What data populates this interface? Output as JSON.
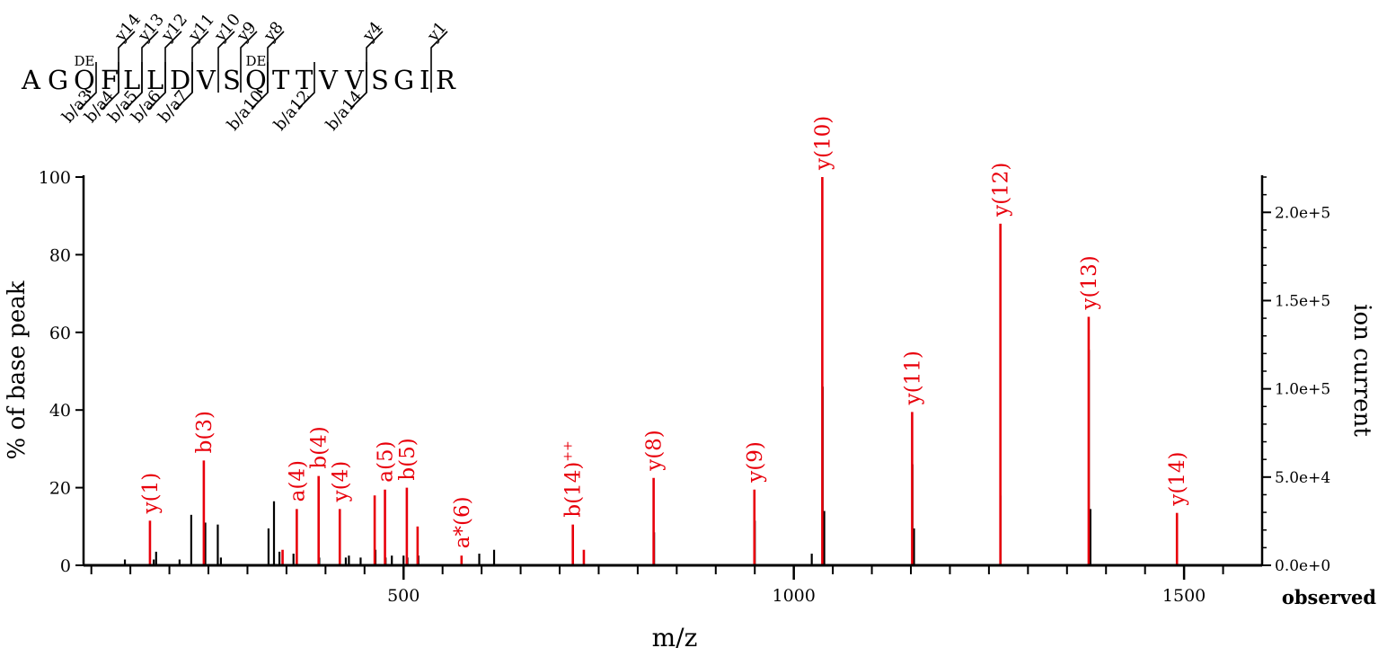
{
  "peptide": {
    "residues": [
      "A",
      "G",
      "Q",
      "F",
      "L",
      "L",
      "D",
      "V",
      "S",
      "Q",
      "T",
      "T",
      "V",
      "V",
      "S",
      "G",
      "I",
      "R"
    ],
    "modification_label": "DE",
    "modified_positions": [
      3,
      10
    ],
    "b_cleavages": [
      {
        "after": 3,
        "label": "b/a3"
      },
      {
        "after": 4,
        "label": "b/a4"
      },
      {
        "after": 5,
        "label": "b/a5"
      },
      {
        "after": 6,
        "label": "b/a6"
      },
      {
        "after": 7,
        "label": "b/a7"
      },
      {
        "after": 10,
        "label": "b/a10"
      },
      {
        "after": 12,
        "label": "b/a12"
      },
      {
        "after": 14,
        "label": "b/a14"
      }
    ],
    "y_cleavages": [
      {
        "after": 4,
        "label": "y14"
      },
      {
        "after": 5,
        "label": "y13"
      },
      {
        "after": 6,
        "label": "y12"
      },
      {
        "after": 7,
        "label": "y11"
      },
      {
        "after": 8,
        "label": "y10"
      },
      {
        "after": 9,
        "label": "y9"
      },
      {
        "after": 10,
        "label": "y8"
      },
      {
        "after": 14,
        "label": "y4"
      },
      {
        "after": 17,
        "label": "y1"
      }
    ]
  },
  "chart_data": {
    "type": "bar",
    "xlabel": "m/z",
    "ylabel": "% of base peak",
    "y2label": "ion current",
    "observed_label": "observed",
    "xlim": [
      90,
      1600
    ],
    "ylim": [
      0,
      100
    ],
    "y2lim": [
      0,
      220000
    ],
    "xticks_major": [
      500,
      1000,
      1500
    ],
    "xtick_labels": [
      "500",
      "1000",
      "1500"
    ],
    "xticks_minor": [
      100,
      150,
      200,
      250,
      300,
      350,
      400,
      450,
      550,
      600,
      650,
      700,
      750,
      800,
      850,
      900,
      950,
      1050,
      1100,
      1150,
      1200,
      1250,
      1300,
      1350,
      1400,
      1450,
      1550
    ],
    "yticks": [
      0,
      20,
      40,
      60,
      80,
      100
    ],
    "ytick_labels": [
      "0",
      "20",
      "40",
      "60",
      "80",
      "100"
    ],
    "y2ticks": [
      0,
      50000,
      100000,
      150000,
      200000
    ],
    "y2tick_labels": [
      "0.0e+0",
      "5.0e+4",
      "1.0e+5",
      "1.5e+5",
      "2.0e+5"
    ],
    "colors": {
      "matched": "#e8000b",
      "unmatched": "#000000"
    },
    "matched_peaks": [
      {
        "mz": 175.1,
        "intensity": 11.5,
        "label": "y(1)"
      },
      {
        "mz": 244.1,
        "intensity": 27,
        "label": "b(3)"
      },
      {
        "mz": 345,
        "intensity": 4,
        "label": ""
      },
      {
        "mz": 363.2,
        "intensity": 14.5,
        "label": "a(4)"
      },
      {
        "mz": 391.2,
        "intensity": 23,
        "label": "b(4)"
      },
      {
        "mz": 418.3,
        "intensity": 14.5,
        "label": "y(4)"
      },
      {
        "mz": 463,
        "intensity": 18,
        "label": ""
      },
      {
        "mz": 476.2,
        "intensity": 19.5,
        "label": "a(5)"
      },
      {
        "mz": 504.2,
        "intensity": 20,
        "label": "b(5)"
      },
      {
        "mz": 518,
        "intensity": 10,
        "label": ""
      },
      {
        "mz": 574.3,
        "intensity": 2.5,
        "label": "a*(6)"
      },
      {
        "mz": 716.9,
        "intensity": 10.5,
        "label": "b(14)",
        "label_sup": "++"
      },
      {
        "mz": 731,
        "intensity": 4,
        "label": ""
      },
      {
        "mz": 820.4,
        "intensity": 22.5,
        "label": "y(8)"
      },
      {
        "mz": 949.5,
        "intensity": 19.5,
        "label": "y(9)"
      },
      {
        "mz": 1036.5,
        "intensity": 100,
        "label": "y(10)"
      },
      {
        "mz": 1151.6,
        "intensity": 39.5,
        "label": "y(11)"
      },
      {
        "mz": 1264.7,
        "intensity": 88,
        "label": "y(12)"
      },
      {
        "mz": 1377.8,
        "intensity": 64,
        "label": "y(13)"
      },
      {
        "mz": 1490.9,
        "intensity": 13.5,
        "label": "y(14)"
      }
    ],
    "unmatched_peaks": [
      {
        "mz": 143,
        "intensity": 1.5
      },
      {
        "mz": 180,
        "intensity": 1.5
      },
      {
        "mz": 183,
        "intensity": 3.5
      },
      {
        "mz": 213,
        "intensity": 1.5
      },
      {
        "mz": 228,
        "intensity": 13
      },
      {
        "mz": 244.8,
        "intensity": 2
      },
      {
        "mz": 246,
        "intensity": 11
      },
      {
        "mz": 262,
        "intensity": 10.5
      },
      {
        "mz": 266,
        "intensity": 2
      },
      {
        "mz": 327,
        "intensity": 9.5
      },
      {
        "mz": 334,
        "intensity": 16.5
      },
      {
        "mz": 341,
        "intensity": 3.5
      },
      {
        "mz": 359,
        "intensity": 3
      },
      {
        "mz": 392,
        "intensity": 2
      },
      {
        "mz": 426,
        "intensity": 2
      },
      {
        "mz": 430,
        "intensity": 2.5
      },
      {
        "mz": 445,
        "intensity": 2
      },
      {
        "mz": 464,
        "intensity": 4
      },
      {
        "mz": 477,
        "intensity": 2
      },
      {
        "mz": 485,
        "intensity": 2.5
      },
      {
        "mz": 500,
        "intensity": 2.5
      },
      {
        "mz": 505,
        "intensity": 2
      },
      {
        "mz": 519,
        "intensity": 2.5
      },
      {
        "mz": 597,
        "intensity": 3
      },
      {
        "mz": 616,
        "intensity": 4
      },
      {
        "mz": 821,
        "intensity": 8.5
      },
      {
        "mz": 950,
        "intensity": 11.5
      },
      {
        "mz": 1023,
        "intensity": 3
      },
      {
        "mz": 1037,
        "intensity": 46
      },
      {
        "mz": 1039,
        "intensity": 14
      },
      {
        "mz": 1152,
        "intensity": 26
      },
      {
        "mz": 1154,
        "intensity": 9.5
      },
      {
        "mz": 1265,
        "intensity": 18
      },
      {
        "mz": 1378,
        "intensity": 55.5
      },
      {
        "mz": 1380,
        "intensity": 14.5
      },
      {
        "mz": 1491,
        "intensity": 13
      }
    ]
  }
}
